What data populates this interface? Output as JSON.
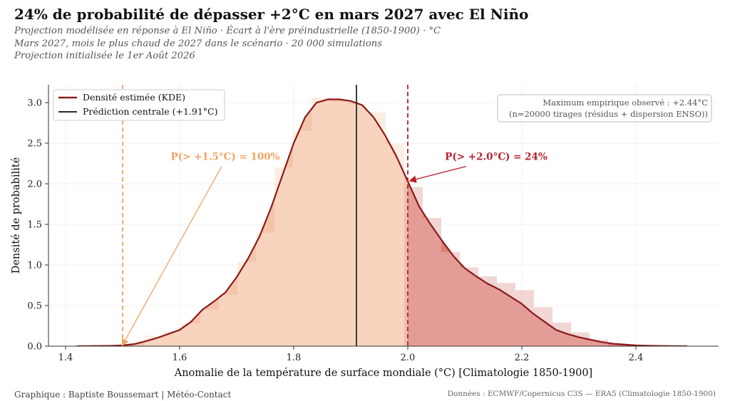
{
  "header": {
    "title": "24% de probabilité de dépasser +2°C en mars 2027 avec El Niño",
    "subtitles": [
      "Projection modélisée en réponse à El Niño · Écart à l'ère préindustrielle (1850-1900) · °C",
      "Mars 2027, mois le plus chaud de 2027 dans le scénario · 20 000 simulations",
      "Projection initialisée le 1er Août 2026"
    ]
  },
  "footer": {
    "credit": "Graphique : Baptiste Boussemart | Météo-Contact",
    "source": "Données : ECMWF/Copernicus C3S — ERA5 (Climatologie 1850-1900)"
  },
  "chart_data": {
    "type": "area",
    "xlabel": "Anomalie de la température de surface mondiale (°C) [Climatologie 1850-1900]",
    "ylabel": "Densité de probabilité",
    "xlim": [
      1.37,
      2.545
    ],
    "ylim": [
      0,
      3.22
    ],
    "xticks": [
      "1.4",
      "1.6",
      "1.8",
      "2.0",
      "2.2",
      "2.4"
    ],
    "yticks": [
      "0.0",
      "0.5",
      "1.0",
      "1.5",
      "2.0",
      "2.5",
      "3.0"
    ],
    "grid": true,
    "legend": {
      "placement": "top-left",
      "entries": [
        "Densité estimée (KDE)",
        "Prédiction centrale (+1.91°C)"
      ]
    },
    "central_prediction": 1.91,
    "threshold_low": 1.5,
    "threshold_high": 2.0,
    "histogram": {
      "bin_width": 0.0325,
      "bins": [
        {
          "x": 1.555,
          "y": 0.13
        },
        {
          "x": 1.5875,
          "y": 0.18
        },
        {
          "x": 1.62,
          "y": 0.28
        },
        {
          "x": 1.6525,
          "y": 0.45
        },
        {
          "x": 1.685,
          "y": 0.63
        },
        {
          "x": 1.7175,
          "y": 1.04
        },
        {
          "x": 1.75,
          "y": 1.4
        },
        {
          "x": 1.7825,
          "y": 2.2
        },
        {
          "x": 1.815,
          "y": 2.65
        },
        {
          "x": 1.8475,
          "y": 3.06
        },
        {
          "x": 1.88,
          "y": 3.01
        },
        {
          "x": 1.9125,
          "y": 2.98
        },
        {
          "x": 1.945,
          "y": 2.88
        },
        {
          "x": 1.9775,
          "y": 2.49
        },
        {
          "x": 2.01,
          "y": 1.96
        },
        {
          "x": 2.0425,
          "y": 1.58
        },
        {
          "x": 2.075,
          "y": 1.16
        },
        {
          "x": 2.1075,
          "y": 0.97
        },
        {
          "x": 2.14,
          "y": 0.86
        },
        {
          "x": 2.1725,
          "y": 0.78
        },
        {
          "x": 2.205,
          "y": 0.69
        },
        {
          "x": 2.2375,
          "y": 0.48
        },
        {
          "x": 2.27,
          "y": 0.29
        },
        {
          "x": 2.3025,
          "y": 0.17
        },
        {
          "x": 2.335,
          "y": 0.08
        }
      ]
    },
    "kde": {
      "x": [
        1.42,
        1.45,
        1.48,
        1.5,
        1.52,
        1.54,
        1.56,
        1.58,
        1.6,
        1.62,
        1.64,
        1.66,
        1.68,
        1.7,
        1.72,
        1.74,
        1.76,
        1.78,
        1.8,
        1.82,
        1.84,
        1.86,
        1.88,
        1.9,
        1.92,
        1.94,
        1.96,
        1.98,
        2.0,
        2.02,
        2.04,
        2.06,
        2.08,
        2.1,
        2.12,
        2.14,
        2.16,
        2.18,
        2.2,
        2.22,
        2.24,
        2.26,
        2.28,
        2.3,
        2.32,
        2.34,
        2.36,
        2.38,
        2.4,
        2.42,
        2.44,
        2.46,
        2.49
      ],
      "y": [
        0.0,
        0.002,
        0.005,
        0.01,
        0.025,
        0.06,
        0.1,
        0.15,
        0.2,
        0.3,
        0.45,
        0.55,
        0.66,
        0.85,
        1.08,
        1.35,
        1.7,
        2.1,
        2.5,
        2.82,
        3.0,
        3.04,
        3.04,
        3.02,
        2.97,
        2.82,
        2.6,
        2.34,
        2.03,
        1.72,
        1.5,
        1.3,
        1.11,
        0.96,
        0.86,
        0.77,
        0.7,
        0.61,
        0.52,
        0.4,
        0.3,
        0.2,
        0.15,
        0.11,
        0.08,
        0.05,
        0.03,
        0.02,
        0.01,
        0.006,
        0.003,
        0.001,
        0.0
      ]
    },
    "annotations": [
      {
        "text": "P(> +1.5°C) = 100%",
        "x": 1.68,
        "y": 2.32,
        "arrow_to_x": 1.5,
        "arrow_to_y": 0.0
      },
      {
        "text": "P(> +2.0°C) = 24%",
        "x": 2.155,
        "y": 2.32,
        "arrow_to_x": 2.0,
        "arrow_to_y": 2.03
      }
    ],
    "info_box": {
      "lines": [
        "Maximum empirique observé : +2.44°C",
        "(n=20000 tirages (résidus + dispersion ENSO))"
      ],
      "placement": "top-right"
    },
    "colors": {
      "kde_line": "#8b1a1a",
      "central_line": "#2b2b2b",
      "threshold_low": "#f4a261",
      "threshold_high": "#b5202b",
      "fill_low": "#f4c4ab",
      "fill_high": "#e07e74",
      "hist_left": "#fbe0cc",
      "hist_right": "#e7b4b4"
    }
  }
}
